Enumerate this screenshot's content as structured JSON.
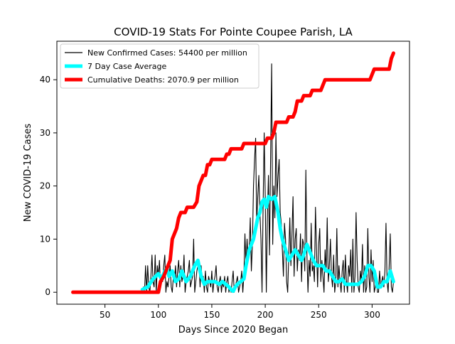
{
  "chart_data": {
    "type": "line",
    "title": "COVID-19 Stats For Pointe Coupee Parish, LA",
    "xlabel": "Days Since 2020 Began",
    "ylabel": "New COVID-19 Cases",
    "xlim": [
      5,
      335
    ],
    "ylim": [
      -2.25,
      47.25
    ],
    "xticks": [
      50,
      100,
      150,
      200,
      250,
      300
    ],
    "yticks": [
      0,
      10,
      20,
      30,
      40
    ],
    "grid": false,
    "legend_position": "upper left",
    "series": [
      {
        "name": "New Confirmed Cases: 54400 per million",
        "color": "#000000",
        "style": "thin",
        "x": [
          85,
          86,
          87,
          88,
          89,
          90,
          91,
          92,
          93,
          94,
          95,
          96,
          97,
          98,
          99,
          100,
          101,
          102,
          103,
          104,
          105,
          106,
          107,
          108,
          109,
          110,
          111,
          112,
          113,
          114,
          115,
          116,
          117,
          118,
          119,
          120,
          121,
          122,
          123,
          124,
          125,
          126,
          127,
          128,
          129,
          130,
          131,
          132,
          133,
          134,
          135,
          136,
          137,
          138,
          139,
          140,
          141,
          142,
          143,
          144,
          145,
          146,
          147,
          148,
          149,
          150,
          151,
          152,
          153,
          154,
          155,
          156,
          157,
          158,
          159,
          160,
          161,
          162,
          163,
          164,
          165,
          166,
          167,
          168,
          169,
          170,
          171,
          172,
          173,
          174,
          175,
          176,
          177,
          178,
          179,
          180,
          181,
          182,
          183,
          184,
          185,
          186,
          187,
          188,
          189,
          190,
          191,
          192,
          193,
          194,
          195,
          196,
          197,
          198,
          199,
          200,
          201,
          202,
          203,
          204,
          205,
          206,
          207,
          208,
          209,
          210,
          211,
          212,
          213,
          214,
          215,
          216,
          217,
          218,
          219,
          220,
          221,
          222,
          223,
          224,
          225,
          226,
          227,
          228,
          229,
          230,
          231,
          232,
          233,
          234,
          235,
          236,
          237,
          238,
          239,
          240,
          241,
          242,
          243,
          244,
          245,
          246,
          247,
          248,
          249,
          250,
          251,
          252,
          253,
          254,
          255,
          256,
          257,
          258,
          259,
          260,
          261,
          262,
          263,
          264,
          265,
          266,
          267,
          268,
          269,
          270,
          271,
          272,
          273,
          274,
          275,
          276,
          277,
          278,
          279,
          280,
          281,
          282,
          283,
          284,
          285,
          286,
          287,
          288,
          289,
          290,
          291,
          292,
          293,
          294,
          295,
          296,
          297,
          298,
          299,
          300,
          301,
          302,
          303,
          304,
          305,
          306,
          307,
          308,
          309,
          310,
          311,
          312,
          313,
          314,
          315,
          316,
          317,
          318,
          319,
          320
        ],
        "values": [
          0,
          1,
          0,
          5,
          0,
          5,
          1,
          0,
          3,
          7,
          2,
          1,
          7,
          0,
          5,
          3,
          6,
          1,
          3,
          2,
          5,
          7,
          0,
          2,
          1,
          3,
          5,
          1,
          0,
          3,
          2,
          5,
          1,
          4,
          6,
          1,
          5,
          2,
          3,
          7,
          0,
          2,
          3,
          4,
          6,
          1,
          2,
          3,
          10,
          0,
          2,
          4,
          5,
          6,
          1,
          5,
          2,
          3,
          0,
          4,
          1,
          0,
          3,
          2,
          1,
          4,
          0,
          2,
          3,
          5,
          1,
          0,
          2,
          3,
          0,
          2,
          1,
          3,
          0,
          2,
          3,
          0,
          1,
          0,
          2,
          4,
          0,
          1,
          2,
          3,
          0,
          1,
          2,
          4,
          0,
          3,
          11,
          5,
          10,
          6,
          8,
          14,
          4,
          9,
          20,
          25,
          29,
          13,
          18,
          22,
          15,
          10,
          0,
          16,
          30,
          18,
          0,
          14,
          22,
          7,
          25,
          43,
          9,
          20,
          14,
          30,
          18,
          22,
          25,
          15,
          13,
          8,
          3,
          13,
          10,
          2,
          0,
          7,
          14,
          5,
          11,
          18,
          3,
          10,
          12,
          4,
          8,
          6,
          11,
          2,
          10,
          9,
          4,
          23,
          7,
          0,
          6,
          3,
          13,
          4,
          5,
          2,
          16,
          8,
          1,
          9,
          12,
          2,
          6,
          3,
          0,
          8,
          4,
          14,
          2,
          5,
          10,
          3,
          1,
          7,
          0,
          2,
          12,
          1,
          5,
          2,
          0,
          4,
          6,
          0,
          7,
          2,
          0,
          5,
          3,
          8,
          0,
          10,
          0,
          3,
          15,
          6,
          1,
          0,
          4,
          2,
          9,
          0,
          5,
          0,
          1,
          12,
          3,
          0,
          8,
          2,
          6,
          0,
          1,
          3,
          0,
          0,
          4,
          1,
          2,
          3,
          1,
          4,
          13,
          2,
          0,
          5,
          11,
          1,
          0,
          2
        ]
      },
      {
        "name": "7 Day Case Average",
        "color": "#00ffff",
        "style": "thick",
        "x": [
          85,
          90,
          95,
          100,
          103,
          106,
          108,
          110,
          113,
          116,
          119,
          122,
          126,
          130,
          134,
          137,
          140,
          143,
          146,
          150,
          153,
          157,
          160,
          163,
          166,
          168,
          170,
          172,
          174,
          177,
          180,
          182,
          185,
          187,
          189,
          191,
          193,
          195,
          197,
          199,
          201,
          203,
          206,
          209,
          212,
          214,
          216,
          219,
          222,
          225,
          228,
          231,
          234,
          236,
          239,
          242,
          245,
          248,
          251,
          254,
          257,
          260,
          263,
          266,
          269,
          272,
          275,
          278,
          281,
          284,
          287,
          290,
          293,
          296,
          299,
          302,
          305,
          308,
          311,
          314,
          317,
          320
        ],
        "values": [
          0.5,
          1,
          2.5,
          3.5,
          2.5,
          4,
          4.5,
          3,
          4,
          2,
          2.5,
          4,
          2,
          3,
          5,
          6,
          3,
          1.5,
          2,
          2,
          2,
          1.5,
          2,
          1.5,
          1,
          0.5,
          0.2,
          1,
          1.5,
          2,
          2.5,
          5,
          8,
          9,
          10,
          12,
          14,
          15,
          17,
          17.5,
          16,
          18,
          17.5,
          18,
          15,
          12,
          10,
          8,
          6,
          7,
          8,
          7,
          6,
          7,
          9,
          7.5,
          6,
          5,
          5,
          5,
          4,
          4,
          3,
          2,
          2,
          2.5,
          1.5,
          1.5,
          1.5,
          1.5,
          1.5,
          2,
          3,
          5,
          5,
          4,
          1,
          1,
          2,
          2,
          4,
          2
        ]
      },
      {
        "name": "Cumulative Deaths: 2070.9 per million",
        "color": "#ff0000",
        "style": "step",
        "x": [
          20,
          100,
          102,
          105,
          107,
          109,
          111,
          113,
          115,
          117,
          119,
          121,
          125,
          127,
          129,
          131,
          133,
          136,
          138,
          140,
          142,
          144,
          146,
          148,
          150,
          152,
          154,
          156,
          158,
          160,
          162,
          164,
          166,
          168,
          170,
          172,
          174,
          176,
          178,
          180,
          182,
          184,
          186,
          188,
          190,
          192,
          194,
          196,
          198,
          200,
          202,
          204,
          206,
          208,
          210,
          212,
          214,
          216,
          218,
          220,
          222,
          224,
          226,
          228,
          230,
          232,
          234,
          236,
          238,
          240,
          242,
          244,
          246,
          248,
          250,
          252,
          254,
          256,
          258,
          260,
          262,
          264,
          266,
          268,
          270,
          272,
          274,
          276,
          278,
          280,
          282,
          284,
          286,
          288,
          290,
          292,
          294,
          296,
          298,
          300,
          302,
          304,
          306,
          308,
          310,
          312,
          314,
          316,
          318,
          320
        ],
        "values": [
          0,
          0,
          2,
          3,
          4,
          5,
          6,
          10,
          11,
          12,
          14,
          15,
          15,
          16,
          16,
          16,
          16,
          17,
          20,
          21,
          22,
          22,
          24,
          24,
          25,
          25,
          25,
          25,
          25,
          25,
          25,
          26,
          26,
          27,
          27,
          27,
          27,
          27,
          27,
          28,
          28,
          28,
          28,
          28,
          28,
          28,
          28,
          28,
          28,
          28,
          29,
          29,
          29,
          30,
          32,
          32,
          32,
          32,
          32,
          32,
          33,
          33,
          33,
          34,
          36,
          36,
          36,
          37,
          37,
          37,
          37,
          38,
          38,
          38,
          38,
          38,
          39,
          40,
          40,
          40,
          40,
          40,
          40,
          40,
          40,
          40,
          40,
          40,
          40,
          40,
          40,
          40,
          40,
          40,
          40,
          40,
          40,
          40,
          40,
          41,
          42,
          42,
          42,
          42,
          42,
          42,
          42,
          42,
          44,
          45
        ]
      }
    ]
  }
}
